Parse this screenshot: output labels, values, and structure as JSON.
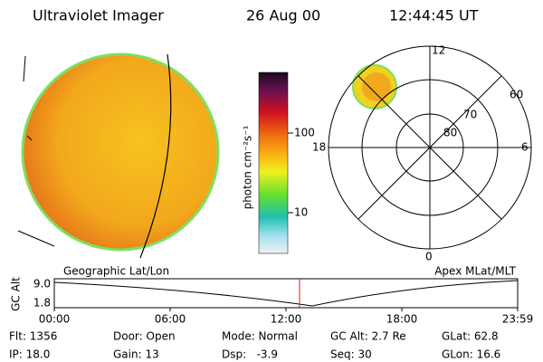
{
  "header": {
    "title": "Ultraviolet Imager",
    "date": "26 Aug 00",
    "time": "12:44:45 UT"
  },
  "colorbar": {
    "label": "photon cm⁻²s⁻¹",
    "ticks": [
      "100",
      "10"
    ]
  },
  "polar": {
    "mlt_labels": [
      "12",
      "18",
      "6",
      "0"
    ],
    "lat_labels": [
      "60",
      "70",
      "80"
    ]
  },
  "track": {
    "left_label": "Geographic Lat/Lon",
    "right_label": "Apex MLat/MLT",
    "y_label": "GC Alt",
    "y_ticks": [
      "9.0",
      "1.8"
    ],
    "x_ticks": [
      "00:00",
      "06:00",
      "12:00",
      "18:00",
      "23:59"
    ]
  },
  "status": [
    [
      "Flt: 1356",
      "Door: Open",
      "Mode: Normal",
      "GC Alt: 2.7 Re",
      "GLat: 62.8"
    ],
    [
      "IP: 18.0",
      "Gain: 13",
      "Dsp:   -3.9",
      "Seq: 30",
      "GLon: 16.6"
    ]
  ]
}
